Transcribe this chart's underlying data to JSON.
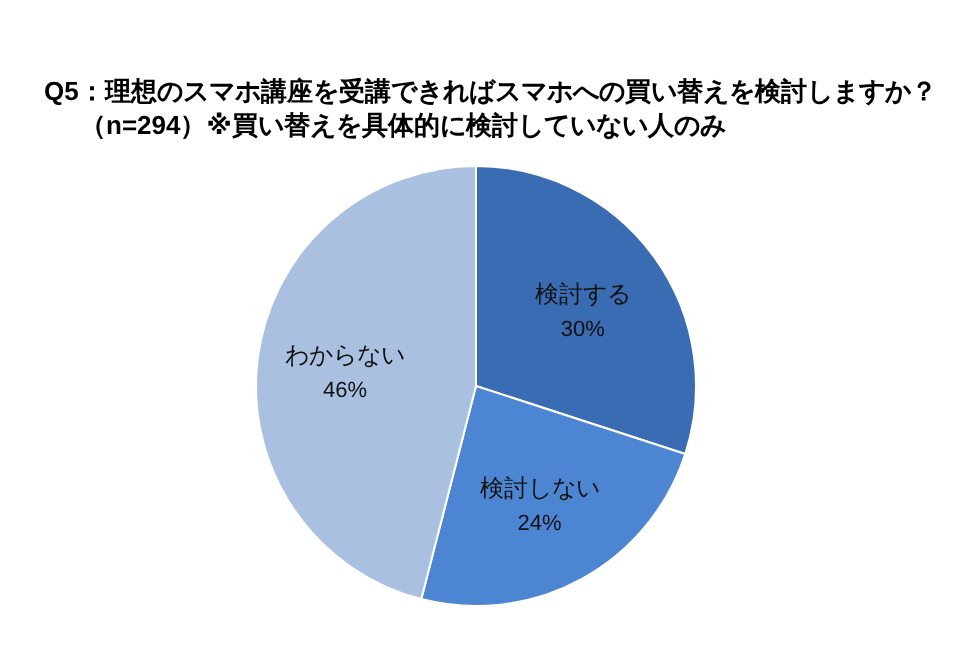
{
  "chart_data": {
    "type": "pie",
    "title": "Q5：理想のスマホ講座を受講できればスマホへの買い替えを検討しますか？",
    "subtitle": "（n=294）※買い替えを具体的に検討していない人のみ",
    "categories": [
      "検討する",
      "検討しない",
      "わからない"
    ],
    "values": [
      30,
      24,
      46
    ],
    "colors": [
      "#3a6cb3",
      "#4c86d2",
      "#aac0e0"
    ],
    "value_labels": [
      "30%",
      "24%",
      "46%"
    ]
  }
}
